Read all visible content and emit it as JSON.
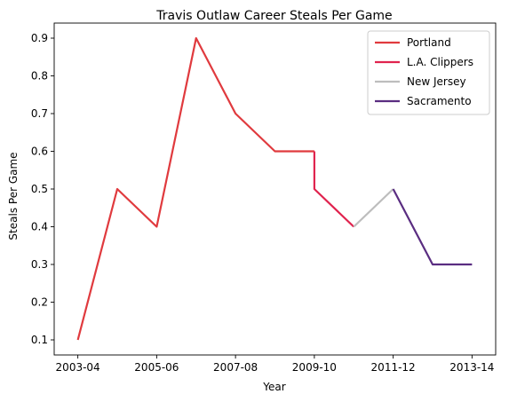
{
  "chart_data": {
    "type": "line",
    "title": "Travis Outlaw Career Steals Per Game",
    "xlabel": "Year",
    "ylabel": "Steals Per Game",
    "x_ticks": [
      "2003-04",
      "2005-06",
      "2007-08",
      "2009-10",
      "2011-12",
      "2013-14"
    ],
    "x_tick_positions": [
      0,
      2,
      4,
      6,
      8,
      10
    ],
    "y_ticks": [
      0.1,
      0.2,
      0.3,
      0.4,
      0.5,
      0.6,
      0.7,
      0.8,
      0.9
    ],
    "xlim": [
      -0.6,
      10.6
    ],
    "ylim": [
      0.06,
      0.94
    ],
    "grid": false,
    "legend_position": "top-right",
    "series": [
      {
        "name": "Portland",
        "color": "#e03a3e",
        "x": [
          0,
          1,
          2,
          3,
          4,
          5,
          6
        ],
        "y": [
          0.1,
          0.5,
          0.4,
          0.9,
          0.7,
          0.6,
          0.6
        ]
      },
      {
        "name": "L.A. Clippers",
        "color": "#e0234e",
        "x": [
          6,
          6,
          7
        ],
        "y": [
          0.6,
          0.5,
          0.4
        ]
      },
      {
        "name": "New Jersey",
        "color": "#bdbdbd",
        "x": [
          7,
          8
        ],
        "y": [
          0.4,
          0.5
        ]
      },
      {
        "name": "Sacramento",
        "color": "#5a2d81",
        "x": [
          8,
          9,
          10
        ],
        "y": [
          0.5,
          0.3,
          0.3
        ]
      }
    ]
  }
}
